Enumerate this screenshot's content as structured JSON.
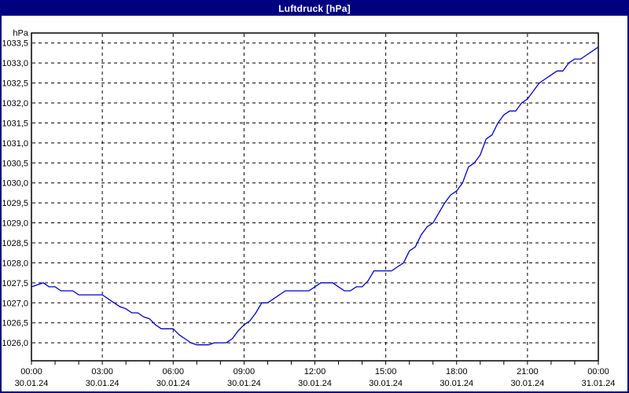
{
  "window": {
    "title": "Luftdruck [hPa]"
  },
  "colors": {
    "titlebar": "#000080",
    "title_text": "#ffffff",
    "window_border": "#000080",
    "background": "#ffffff",
    "plot_border": "#000000",
    "grid": "#000000",
    "line": "#0000cc"
  },
  "chart_data": {
    "type": "line",
    "title": "Luftdruck [hPa]",
    "series_name": "Luftdruck",
    "unit_label": "hPa",
    "grid": "dashed",
    "legend": "none",
    "xlim": [
      0,
      24
    ],
    "ylim": [
      1025.55,
      1033.75
    ],
    "x_axis_kind": "time-of-day-hours",
    "x_hours": [
      0,
      0.25,
      0.5,
      0.75,
      1,
      1.25,
      1.5,
      1.75,
      2,
      2.25,
      2.5,
      2.75,
      3,
      3.25,
      3.5,
      3.75,
      4,
      4.25,
      4.5,
      4.75,
      5,
      5.25,
      5.5,
      5.75,
      6,
      6.25,
      6.5,
      6.75,
      7,
      7.25,
      7.5,
      7.75,
      8,
      8.25,
      8.5,
      8.75,
      9,
      9.25,
      9.5,
      9.75,
      10,
      10.25,
      10.5,
      10.75,
      11,
      11.25,
      11.5,
      11.75,
      12,
      12.25,
      12.5,
      12.75,
      13,
      13.25,
      13.5,
      13.75,
      14,
      14.25,
      14.5,
      14.75,
      15,
      15.25,
      15.5,
      15.75,
      16,
      16.25,
      16.5,
      16.75,
      17,
      17.25,
      17.5,
      17.75,
      18,
      18.25,
      18.5,
      18.75,
      19,
      19.25,
      19.5,
      19.75,
      20,
      20.25,
      20.5,
      20.75,
      21,
      21.25,
      21.5,
      21.75,
      22,
      22.25,
      22.5,
      22.75,
      23,
      23.25,
      23.5,
      23.75,
      24
    ],
    "values": [
      1027.4,
      1027.45,
      1027.5,
      1027.4,
      1027.4,
      1027.3,
      1027.3,
      1027.3,
      1027.2,
      1027.2,
      1027.2,
      1027.2,
      1027.2,
      1027.1,
      1027.0,
      1026.9,
      1026.85,
      1026.75,
      1026.75,
      1026.65,
      1026.6,
      1026.45,
      1026.35,
      1026.35,
      1026.35,
      1026.2,
      1026.1,
      1026.0,
      1025.95,
      1025.95,
      1025.95,
      1026.0,
      1026.0,
      1026.0,
      1026.1,
      1026.3,
      1026.45,
      1026.55,
      1026.75,
      1027.0,
      1027.0,
      1027.1,
      1027.2,
      1027.3,
      1027.3,
      1027.3,
      1027.3,
      1027.3,
      1027.4,
      1027.5,
      1027.5,
      1027.5,
      1027.4,
      1027.3,
      1027.3,
      1027.4,
      1027.4,
      1027.55,
      1027.8,
      1027.8,
      1027.8,
      1027.8,
      1027.9,
      1028.0,
      1028.3,
      1028.4,
      1028.7,
      1028.9,
      1029.0,
      1029.25,
      1029.5,
      1029.7,
      1029.8,
      1030.0,
      1030.4,
      1030.5,
      1030.7,
      1031.1,
      1031.2,
      1031.5,
      1031.7,
      1031.8,
      1031.8,
      1032.0,
      1032.1,
      1032.3,
      1032.5,
      1032.6,
      1032.7,
      1032.8,
      1032.8,
      1033.0,
      1033.1,
      1033.1,
      1033.2,
      1033.3,
      1033.4
    ],
    "y_ticks": [
      {
        "value": 1033.5,
        "label": "1033,5"
      },
      {
        "value": 1033.0,
        "label": "1033,0"
      },
      {
        "value": 1032.5,
        "label": "1032,5"
      },
      {
        "value": 1032.0,
        "label": "1032,0"
      },
      {
        "value": 1031.5,
        "label": "1031,5"
      },
      {
        "value": 1031.0,
        "label": "1031,0"
      },
      {
        "value": 1030.5,
        "label": "1030,5"
      },
      {
        "value": 1030.0,
        "label": "1030,0"
      },
      {
        "value": 1029.5,
        "label": "1029,5"
      },
      {
        "value": 1029.0,
        "label": "1029,0"
      },
      {
        "value": 1028.5,
        "label": "1028,5"
      },
      {
        "value": 1028.0,
        "label": "1028,0"
      },
      {
        "value": 1027.5,
        "label": "1027,5"
      },
      {
        "value": 1027.0,
        "label": "1027,0"
      },
      {
        "value": 1026.5,
        "label": "1026,5"
      },
      {
        "value": 1026.0,
        "label": "1026,0"
      }
    ],
    "x_ticks": [
      {
        "hour": 0,
        "time": "00:00",
        "date": "30.01.24"
      },
      {
        "hour": 3,
        "time": "03:00",
        "date": "30.01.24"
      },
      {
        "hour": 6,
        "time": "06:00",
        "date": "30.01.24"
      },
      {
        "hour": 9,
        "time": "09:00",
        "date": "30.01.24"
      },
      {
        "hour": 12,
        "time": "12:00",
        "date": "30.01.24"
      },
      {
        "hour": 15,
        "time": "15:00",
        "date": "30.01.24"
      },
      {
        "hour": 18,
        "time": "18:00",
        "date": "30.01.24"
      },
      {
        "hour": 21,
        "time": "21:00",
        "date": "30.01.24"
      },
      {
        "hour": 24,
        "time": "00:00",
        "date": "31.01.24"
      }
    ],
    "minor_tick_every_hours": 1
  }
}
